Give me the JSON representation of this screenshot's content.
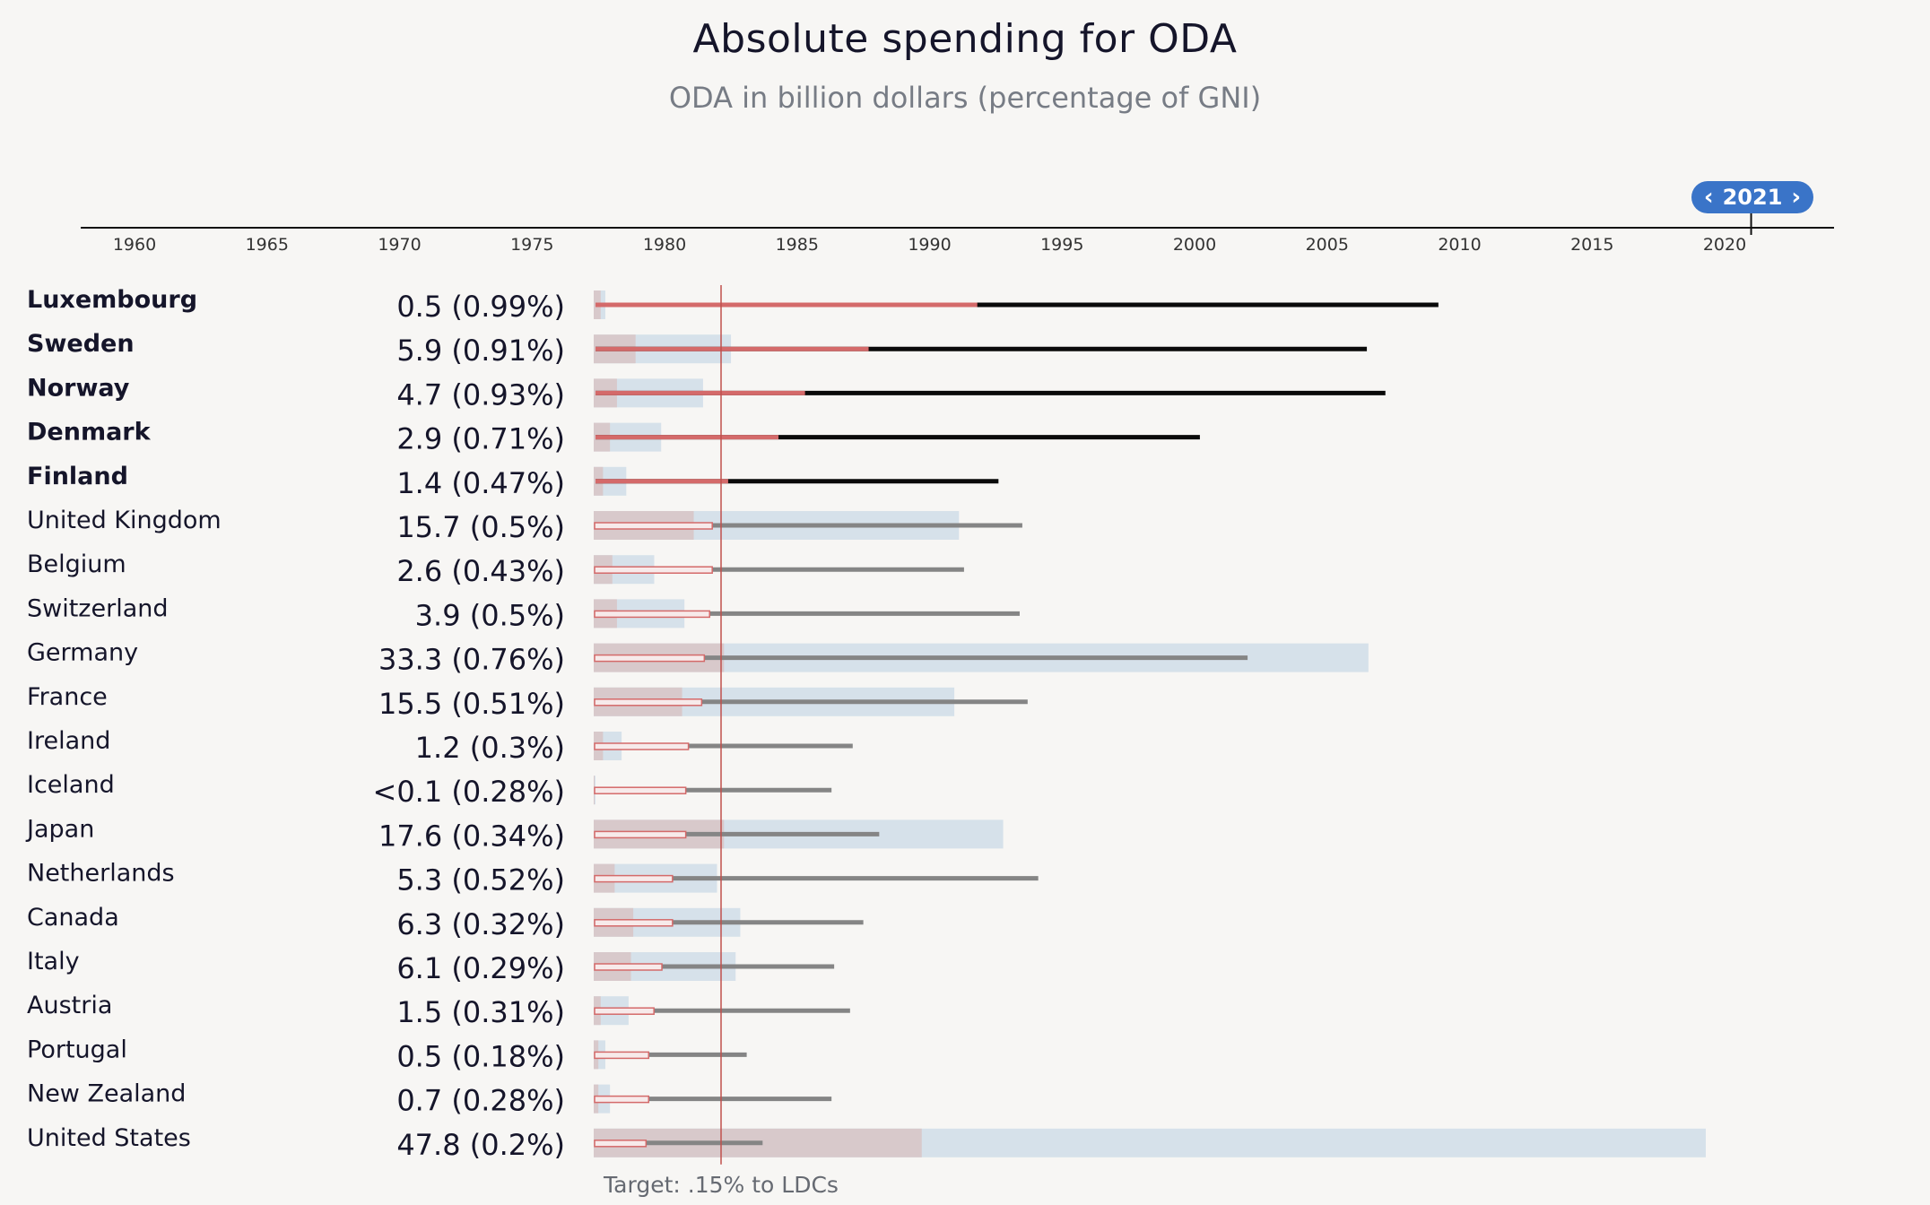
{
  "title": "Absolute spending for ODA",
  "subtitle": "ODA in billion dollars (percentage of GNI)",
  "year_selector": {
    "value": "2021",
    "prev_icon": "chevron-left-icon",
    "next_icon": "chevron-right-icon"
  },
  "target_label": "Target: .15% to LDCs",
  "colors": {
    "background": "#f7f6f4",
    "oda_bar": "#d6e1ea",
    "ldc_bar": "#d8c9cb",
    "leader_line": "#0a0a0a",
    "other_line": "#858585",
    "ldc_share_line": "#d46a6a",
    "target_line": "#c0504d",
    "selector": "#3a74c8"
  },
  "chart_data": {
    "type": "bar",
    "timeline": {
      "ticks": [
        "1960",
        "1965",
        "1970",
        "1975",
        "1980",
        "1985",
        "1990",
        "1995",
        "2000",
        "2005",
        "2010",
        "2015",
        "2020"
      ],
      "selected_year": 2021
    },
    "target": {
      "label": "Target: .15% to LDCs",
      "value": 0.15
    },
    "rows": [
      {
        "country": "Luxembourg",
        "label": "0.5 (0.99%)",
        "oda_bn": 0.5,
        "gni_pct": 0.99,
        "meets_target": true,
        "since_year": 2009.2,
        "ldc_bn": 0.3,
        "ldc_share_year": 1991.8
      },
      {
        "country": "Sweden",
        "label": "5.9 (0.91%)",
        "oda_bn": 5.9,
        "gni_pct": 0.91,
        "meets_target": true,
        "since_year": 2006.5,
        "ldc_bn": 1.8,
        "ldc_share_year": 1987.7
      },
      {
        "country": "Norway",
        "label": "4.7 (0.93%)",
        "oda_bn": 4.7,
        "gni_pct": 0.93,
        "meets_target": true,
        "since_year": 2007.2,
        "ldc_bn": 1.0,
        "ldc_share_year": 1985.3
      },
      {
        "country": "Denmark",
        "label": "2.9 (0.71%)",
        "oda_bn": 2.9,
        "gni_pct": 0.71,
        "meets_target": true,
        "since_year": 2000.2,
        "ldc_bn": 0.7,
        "ldc_share_year": 1984.3
      },
      {
        "country": "Finland",
        "label": "1.4 (0.47%)",
        "oda_bn": 1.4,
        "gni_pct": 0.47,
        "meets_target": true,
        "since_year": 1992.6,
        "ldc_bn": 0.4,
        "ldc_share_year": 1982.4
      },
      {
        "country": "United Kingdom",
        "label": "15.7 (0.5%)",
        "oda_bn": 15.7,
        "gni_pct": 0.5,
        "meets_target": false,
        "since_year": 1993.5,
        "ldc_bn": 4.3,
        "ldc_share_year": 1981.8
      },
      {
        "country": "Belgium",
        "label": "2.6 (0.43%)",
        "oda_bn": 2.6,
        "gni_pct": 0.43,
        "meets_target": false,
        "since_year": 1991.3,
        "ldc_bn": 0.8,
        "ldc_share_year": 1981.8
      },
      {
        "country": "Switzerland",
        "label": "3.9 (0.5%)",
        "oda_bn": 3.9,
        "gni_pct": 0.5,
        "meets_target": false,
        "since_year": 1993.4,
        "ldc_bn": 1.0,
        "ldc_share_year": 1981.7
      },
      {
        "country": "Germany",
        "label": "33.3 (0.76%)",
        "oda_bn": 33.3,
        "gni_pct": 0.76,
        "meets_target": false,
        "since_year": 2002.0,
        "ldc_bn": 5.6,
        "ldc_share_year": 1981.5
      },
      {
        "country": "France",
        "label": "15.5 (0.51%)",
        "oda_bn": 15.5,
        "gni_pct": 0.51,
        "meets_target": false,
        "since_year": 1993.7,
        "ldc_bn": 3.8,
        "ldc_share_year": 1981.4
      },
      {
        "country": "Ireland",
        "label": "1.2 (0.3%)",
        "oda_bn": 1.2,
        "gni_pct": 0.3,
        "meets_target": false,
        "since_year": 1987.1,
        "ldc_bn": 0.4,
        "ldc_share_year": 1980.9
      },
      {
        "country": "Iceland",
        "label": "<0.1 (0.28%)",
        "oda_bn": 0.05,
        "gni_pct": 0.28,
        "meets_target": false,
        "since_year": 1986.3,
        "ldc_bn": 0.02,
        "ldc_share_year": 1980.8
      },
      {
        "country": "Japan",
        "label": "17.6 (0.34%)",
        "oda_bn": 17.6,
        "gni_pct": 0.34,
        "meets_target": false,
        "since_year": 1988.1,
        "ldc_bn": 5.6,
        "ldc_share_year": 1980.8
      },
      {
        "country": "Netherlands",
        "label": "5.3 (0.52%)",
        "oda_bn": 5.3,
        "gni_pct": 0.52,
        "meets_target": false,
        "since_year": 1994.1,
        "ldc_bn": 0.9,
        "ldc_share_year": 1980.3
      },
      {
        "country": "Canada",
        "label": "6.3 (0.32%)",
        "oda_bn": 6.3,
        "gni_pct": 0.32,
        "meets_target": false,
        "since_year": 1987.5,
        "ldc_bn": 1.7,
        "ldc_share_year": 1980.3
      },
      {
        "country": "Italy",
        "label": "6.1 (0.29%)",
        "oda_bn": 6.1,
        "gni_pct": 0.29,
        "meets_target": false,
        "since_year": 1986.4,
        "ldc_bn": 1.6,
        "ldc_share_year": 1979.9
      },
      {
        "country": "Austria",
        "label": "1.5 (0.31%)",
        "oda_bn": 1.5,
        "gni_pct": 0.31,
        "meets_target": false,
        "since_year": 1987.0,
        "ldc_bn": 0.3,
        "ldc_share_year": 1979.6
      },
      {
        "country": "Portugal",
        "label": "0.5 (0.18%)",
        "oda_bn": 0.5,
        "gni_pct": 0.18,
        "meets_target": false,
        "since_year": 1983.1,
        "ldc_bn": 0.2,
        "ldc_share_year": 1979.4
      },
      {
        "country": "New Zealand",
        "label": "0.7 (0.28%)",
        "oda_bn": 0.7,
        "gni_pct": 0.28,
        "meets_target": false,
        "since_year": 1986.3,
        "ldc_bn": 0.2,
        "ldc_share_year": 1979.4
      },
      {
        "country": "United States",
        "label": "47.8 (0.2%)",
        "oda_bn": 47.8,
        "gni_pct": 0.2,
        "meets_target": false,
        "since_year": 1983.7,
        "ldc_bn": 14.1,
        "ldc_share_year": 1979.3
      }
    ]
  }
}
